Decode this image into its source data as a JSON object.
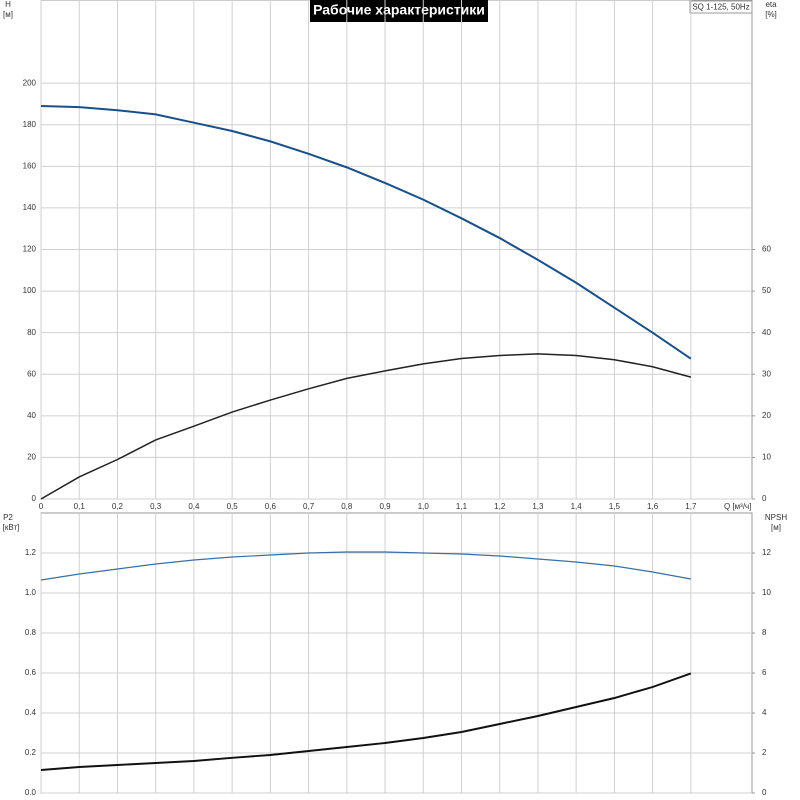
{
  "chart_data": [
    {
      "type": "line",
      "title": "Рабочие характеристики",
      "subtitle": "SQ 1-125, 50Hz",
      "xlabel": "Q [м³/ч]",
      "ylabel": "H",
      "yunit": "[м]",
      "y2label": "eta",
      "y2unit": "[%]",
      "x": [
        0,
        0.1,
        0.2,
        0.3,
        0.4,
        0.5,
        0.6,
        0.7,
        0.8,
        0.9,
        1.0,
        1.1,
        1.2,
        1.3,
        1.4,
        1.5,
        1.6,
        1.7
      ],
      "xlim": [
        0,
        1.86
      ],
      "xticks": [
        0,
        {
          "value": 0.1,
          "label": "0,1"
        },
        {
          "value": 0.2,
          "label": "0,2"
        },
        {
          "value": 0.3,
          "label": "0,3"
        },
        {
          "value": 0.4,
          "label": "0,4"
        },
        {
          "value": 0.5,
          "label": "0,5"
        },
        {
          "value": 0.6,
          "label": "0,6"
        },
        {
          "value": 0.7,
          "label": "0,7"
        },
        {
          "value": 0.8,
          "label": "0,8"
        },
        {
          "value": 0.9,
          "label": "0,9"
        },
        {
          "value": 1.0,
          "label": "1,0"
        },
        {
          "value": 1.1,
          "label": "1,1"
        },
        {
          "value": 1.2,
          "label": "1,2"
        },
        {
          "value": 1.3,
          "label": "1,3"
        },
        {
          "value": 1.4,
          "label": "1,4"
        },
        {
          "value": 1.5,
          "label": "1,5"
        },
        {
          "value": 1.6,
          "label": "1,6"
        },
        {
          "value": 1.7,
          "label": "1,7"
        }
      ],
      "ylim": [
        0,
        240
      ],
      "yticks": [
        0,
        20,
        40,
        60,
        80,
        100,
        120,
        140,
        160,
        180,
        200
      ],
      "y2lim": [
        0,
        120
      ],
      "y2ticks": [
        0,
        10,
        20,
        30,
        40,
        50,
        60
      ],
      "grid": true,
      "series": [
        {
          "color": "#1a4f8a",
          "values": [
            189,
            188.5,
            187,
            185,
            181,
            177,
            172,
            166,
            159.5,
            152,
            144,
            135,
            125.5,
            115,
            104,
            92,
            80,
            67.5
          ]
        },
        {
          "color": "#222222",
          "axis": "y2",
          "values": [
            0,
            5.3,
            9.5,
            14.2,
            17.5,
            20.9,
            23.8,
            26.5,
            29,
            30.8,
            32.5,
            33.8,
            34.5,
            34.9,
            34.5,
            33.5,
            31.8,
            29.3
          ]
        }
      ]
    },
    {
      "type": "line",
      "ylabel": "P2",
      "yunit": "[кВт]",
      "y2label": "NPSH",
      "y2unit": "[м]",
      "x": [
        0,
        0.1,
        0.2,
        0.3,
        0.4,
        0.5,
        0.6,
        0.7,
        0.8,
        0.9,
        1.0,
        1.1,
        1.2,
        1.3,
        1.4,
        1.5,
        1.6,
        1.7
      ],
      "xlim": [
        0,
        1.86
      ],
      "ylim": [
        0,
        1.4
      ],
      "yticks": [
        {
          "value": 0,
          "label": "0.0"
        },
        0.2,
        0.4,
        0.6,
        0.8,
        {
          "value": 1,
          "label": "1.0"
        },
        1.2
      ],
      "y2lim": [
        0,
        14
      ],
      "y2ticks": [
        0,
        2,
        4,
        6,
        8,
        10,
        12
      ],
      "grid": true,
      "series": [
        {
          "color": "#3a6ea5",
          "values": [
            1.065,
            1.095,
            1.12,
            1.145,
            1.165,
            1.18,
            1.19,
            1.2,
            1.205,
            1.205,
            1.2,
            1.195,
            1.185,
            1.17,
            1.155,
            1.135,
            1.105,
            1.07
          ]
        },
        {
          "color": "#111111",
          "axis": "y2",
          "values": [
            1.15,
            1.3,
            1.4,
            1.5,
            1.6,
            1.76,
            1.9,
            2.1,
            2.3,
            2.5,
            2.75,
            3.05,
            3.45,
            3.85,
            4.3,
            4.75,
            5.3,
            5.98
          ]
        }
      ]
    }
  ]
}
